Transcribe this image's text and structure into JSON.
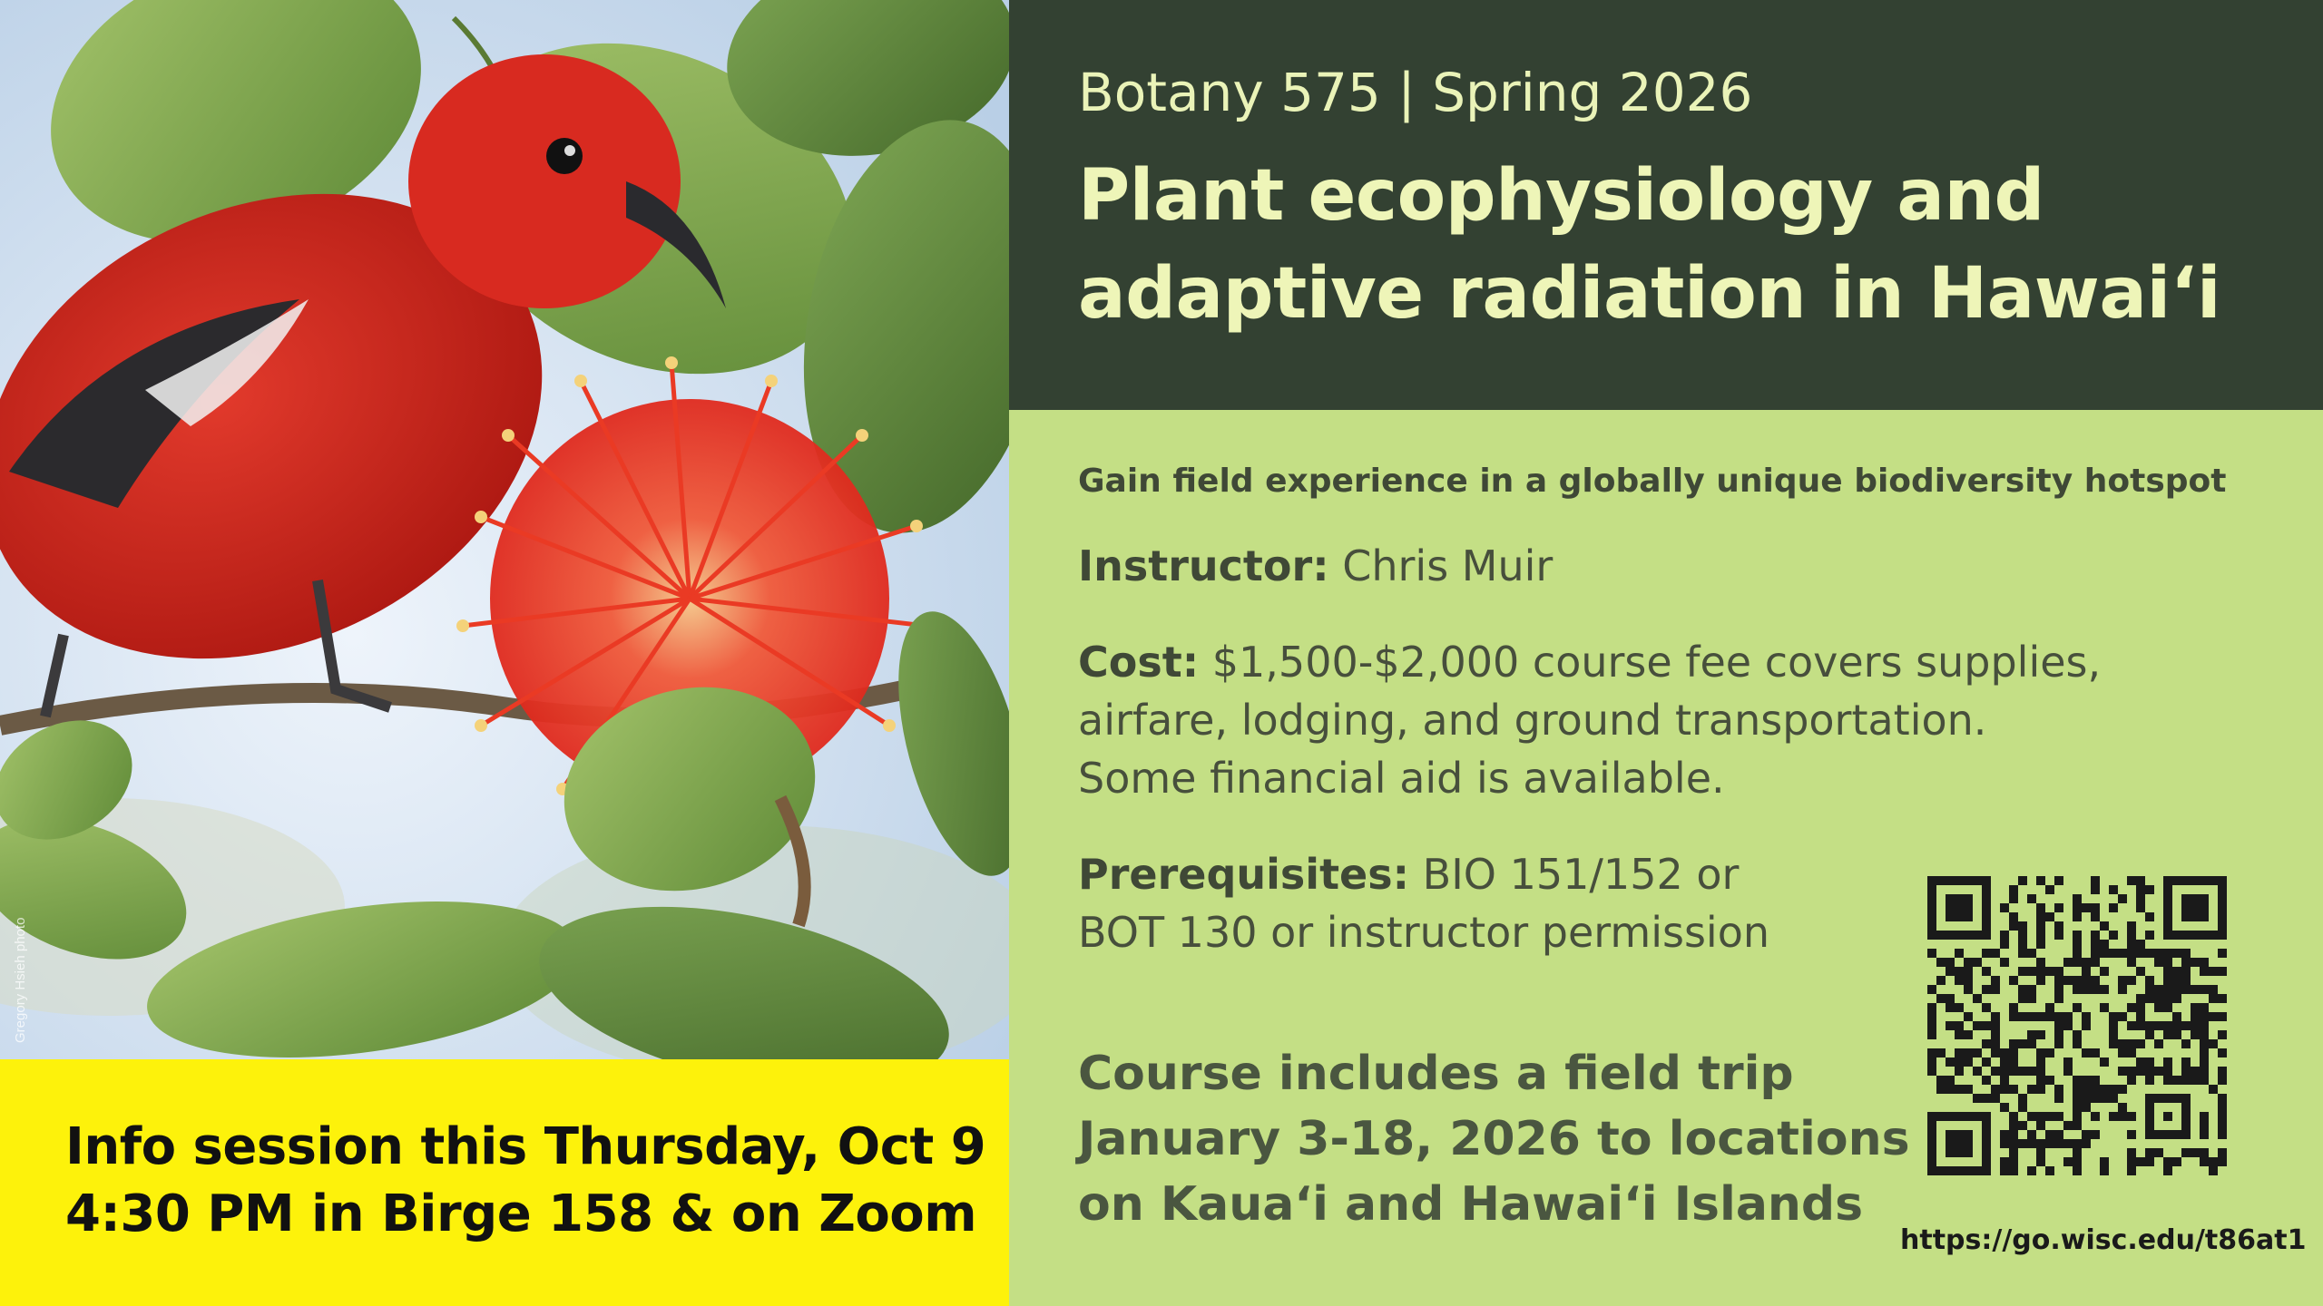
{
  "photo": {
    "alt": "Red ʻapapane-like Hawaiian honeycreeper perched beside a red ʻōhiʻa lehua blossom",
    "credit": "Gregory Hsieh photo"
  },
  "info_session": {
    "line1": "Info session this Thursday, Oct 9",
    "line2": "4:30 PM in Birge 158 & on Zoom"
  },
  "header": {
    "course_code": "Botany 575 | Spring 2026",
    "title_line1": "Plant ecophysiology and",
    "title_line2": "adaptive radiation in Hawai‘i"
  },
  "details": {
    "tagline": "Gain field experience in a globally unique biodiversity hotspot",
    "instructor_label": "Instructor:",
    "instructor_value": "Chris Muir",
    "cost_label": "Cost:",
    "cost_line1": "$1,500-$2,000 course fee covers supplies,",
    "cost_line2": "airfare, lodging, and ground transportation.",
    "cost_line3": "Some financial aid is available.",
    "prereq_label": "Prerequisites:",
    "prereq_line1": "BIO 151/152 or",
    "prereq_line2": "BOT 130 or instructor permission"
  },
  "field_trip": {
    "line1": "Course includes a field trip",
    "line2": "January 3-18, 2026 to locations",
    "line3": "on Kaua‘i and Hawai‘i Islands"
  },
  "qr": {
    "url": "https://go.wisc.edu/t86at1"
  },
  "colors": {
    "header_bg": "#334132",
    "body_bg": "#c4df85",
    "banner_bg": "#fdf20b",
    "title_text": "#eef5b8"
  }
}
